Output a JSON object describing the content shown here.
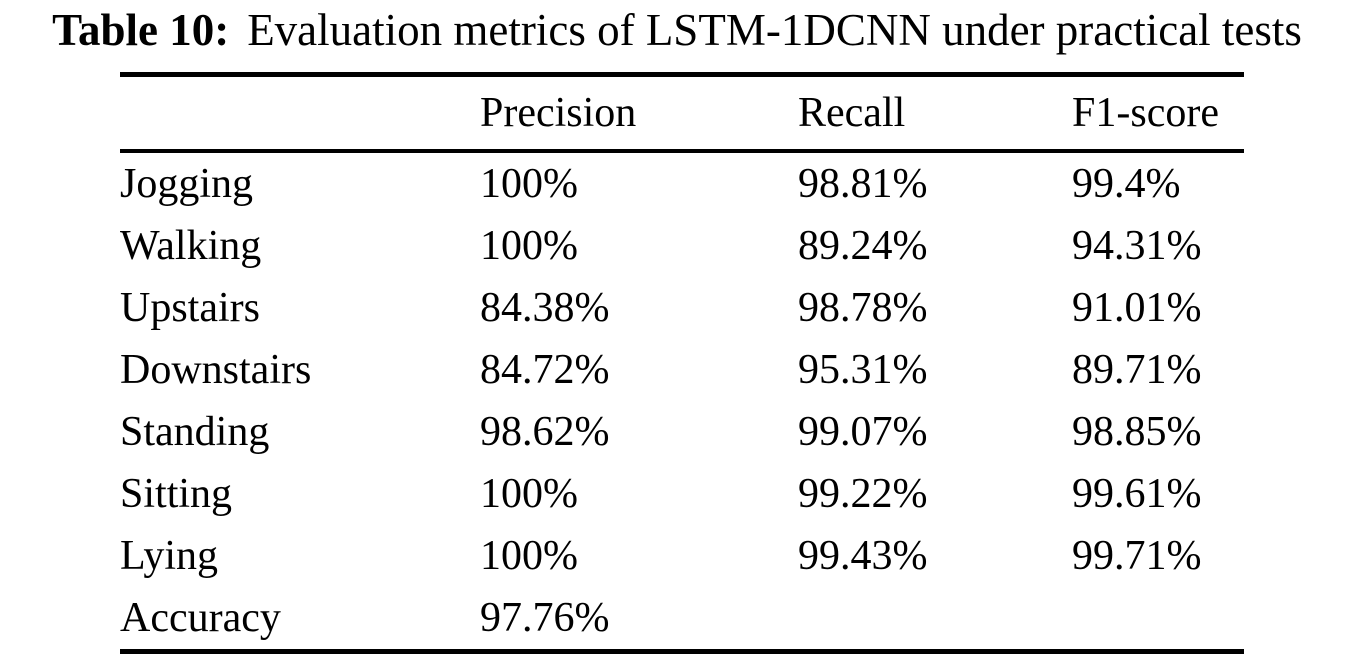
{
  "caption": {
    "label": "Table 10:",
    "text": "Evaluation metrics of LSTM-1DCNN under practical tests"
  },
  "table": {
    "columns": [
      "",
      "Precision",
      "Recall",
      "F1-score"
    ],
    "rows": [
      {
        "label": "Jogging",
        "precision": "100%",
        "recall": "98.81%",
        "f1": "99.4%"
      },
      {
        "label": "Walking",
        "precision": "100%",
        "recall": "89.24%",
        "f1": "94.31%"
      },
      {
        "label": "Upstairs",
        "precision": "84.38%",
        "recall": "98.78%",
        "f1": "91.01%"
      },
      {
        "label": "Downstairs",
        "precision": "84.72%",
        "recall": "95.31%",
        "f1": "89.71%"
      },
      {
        "label": "Standing",
        "precision": "98.62%",
        "recall": "99.07%",
        "f1": "98.85%"
      },
      {
        "label": "Sitting",
        "precision": "100%",
        "recall": "99.22%",
        "f1": "99.61%"
      },
      {
        "label": "Lying",
        "precision": "100%",
        "recall": "99.43%",
        "f1": "99.71%"
      },
      {
        "label": "Accuracy",
        "precision": "97.76%",
        "recall": "",
        "f1": ""
      }
    ]
  },
  "chart_data": {
    "type": "table",
    "title": "Table 10: Evaluation metrics of LSTM-1DCNN under practical tests",
    "columns": [
      "Precision",
      "Recall",
      "F1-score"
    ],
    "categories": [
      "Jogging",
      "Walking",
      "Upstairs",
      "Downstairs",
      "Standing",
      "Sitting",
      "Lying"
    ],
    "series": [
      {
        "name": "Precision",
        "values": [
          100,
          100,
          84.38,
          84.72,
          98.62,
          100,
          100
        ]
      },
      {
        "name": "Recall",
        "values": [
          98.81,
          89.24,
          98.78,
          95.31,
          99.07,
          99.22,
          99.43
        ]
      },
      {
        "name": "F1-score",
        "values": [
          99.4,
          94.31,
          91.01,
          89.71,
          98.85,
          99.61,
          99.71
        ]
      }
    ],
    "footer": {
      "label": "Accuracy",
      "value": 97.76,
      "unit": "%"
    }
  }
}
